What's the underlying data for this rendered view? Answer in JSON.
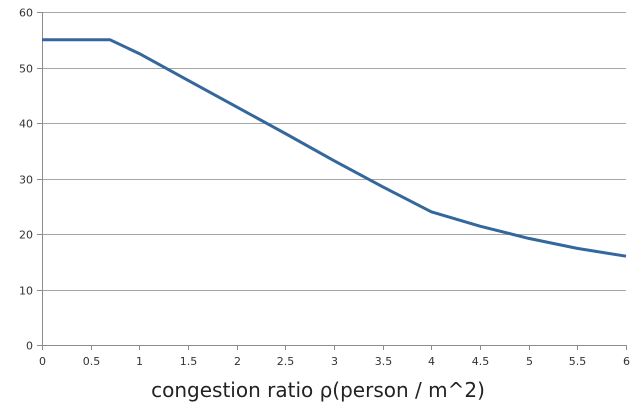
{
  "chart_data": {
    "type": "line",
    "title": "",
    "xlabel": "congestion ratio ρ(person / m^2)",
    "ylabel": "",
    "xlim": [
      0,
      6
    ],
    "ylim": [
      0,
      60
    ],
    "xticks": [
      0,
      0.5,
      1,
      1.5,
      2,
      2.5,
      3,
      3.5,
      4,
      4.5,
      5,
      5.5,
      6
    ],
    "xtick_labels": [
      "0",
      "0.5",
      "1",
      "1.5",
      "2",
      "2.5",
      "3",
      "3.5",
      "4",
      "4.5",
      "5",
      "5.5",
      "6"
    ],
    "yticks": [
      0,
      10,
      20,
      30,
      40,
      50,
      60
    ],
    "ytick_labels": [
      "0",
      "10",
      "20",
      "30",
      "40",
      "50",
      "60"
    ],
    "grid": "horizontal",
    "legend": "none",
    "series": [
      {
        "color": "#34679b",
        "x": [
          0,
          0.7,
          1,
          1.5,
          2,
          2.5,
          3,
          3.5,
          4,
          4.5,
          5,
          5.5,
          6
        ],
        "y": [
          55,
          55,
          52.5,
          47.7,
          42.9,
          38.1,
          33.2,
          28.5,
          24,
          21.4,
          19.2,
          17.4,
          16
        ]
      }
    ]
  }
}
